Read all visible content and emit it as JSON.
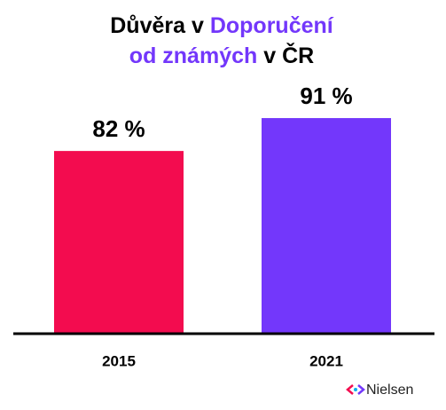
{
  "chart_data": {
    "type": "bar",
    "title": [
      "Důvěra v",
      "Doporučení",
      "od známých",
      "v ČR"
    ],
    "title_colors": [
      "#000000",
      "#7337fb",
      "#7337fb",
      "#000000"
    ],
    "categories": [
      "2015",
      "2021"
    ],
    "values": [
      82,
      91
    ],
    "value_labels": [
      "82 %",
      "91 %"
    ],
    "colors": [
      "#f30c4f",
      "#7337fb"
    ],
    "ylim": [
      32,
      100
    ],
    "grid": false
  },
  "logo": "Nielsen"
}
